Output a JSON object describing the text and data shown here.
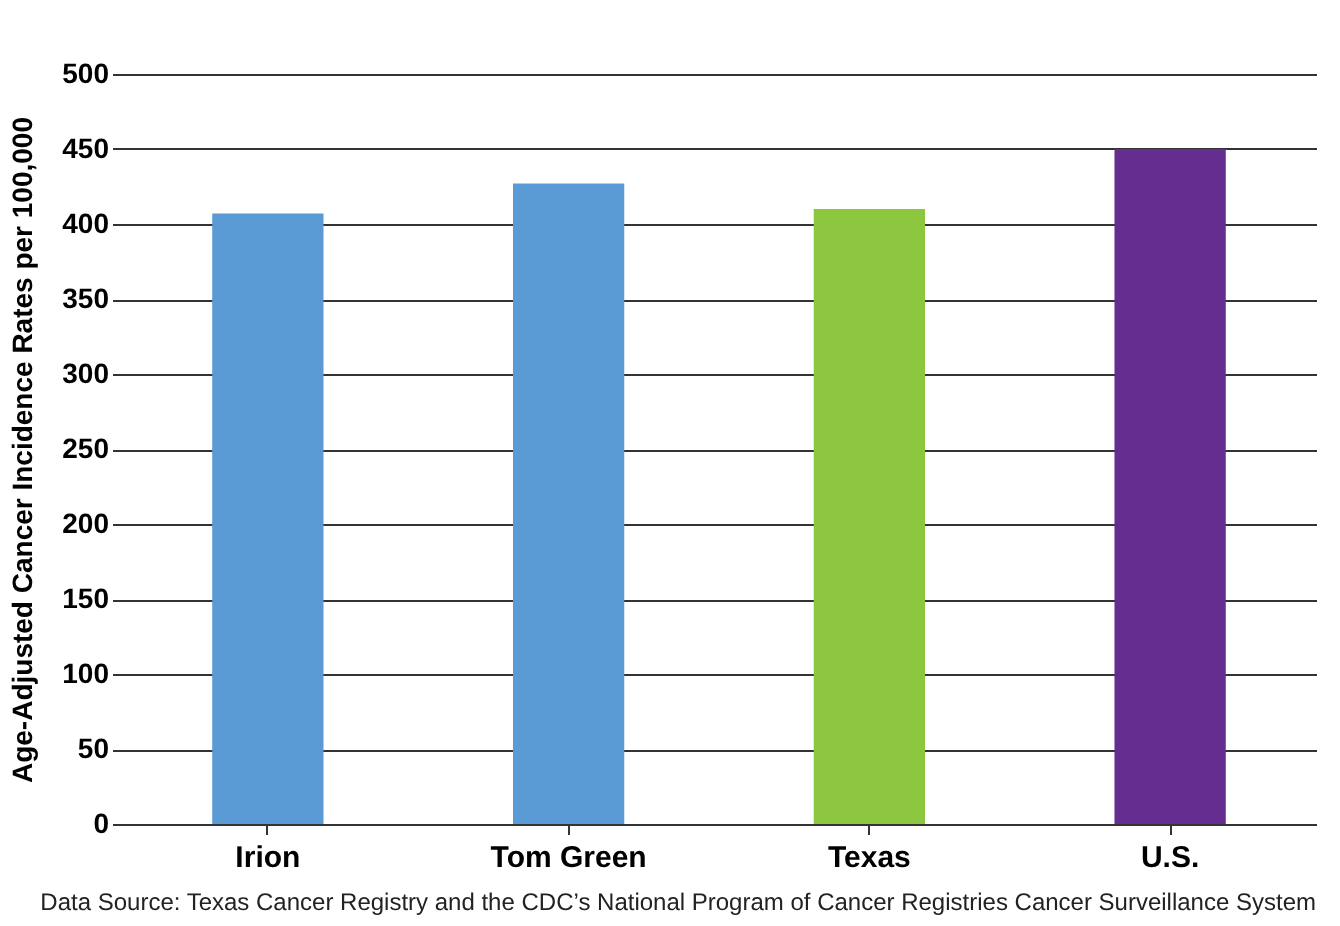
{
  "chart_data": {
    "type": "bar",
    "ylabel": "Age-Adjusted Cancer Incidence Rates per 100,000",
    "categories": [
      "Irion",
      "Tom Green",
      "Texas",
      "U.S."
    ],
    "values": [
      407,
      427,
      410,
      450
    ],
    "colors": [
      "#5b9bd5",
      "#5b9bd5",
      "#8dc63f",
      "#662d91"
    ],
    "ylim": [
      0,
      500
    ],
    "yticks": [
      0,
      50,
      100,
      150,
      200,
      250,
      300,
      350,
      400,
      450,
      500
    ],
    "grid": "y",
    "annotations": [
      "Data Source: Texas Cancer Registry and the CDC’s National Program of Cancer Registries Cancer Surveillance System"
    ]
  }
}
